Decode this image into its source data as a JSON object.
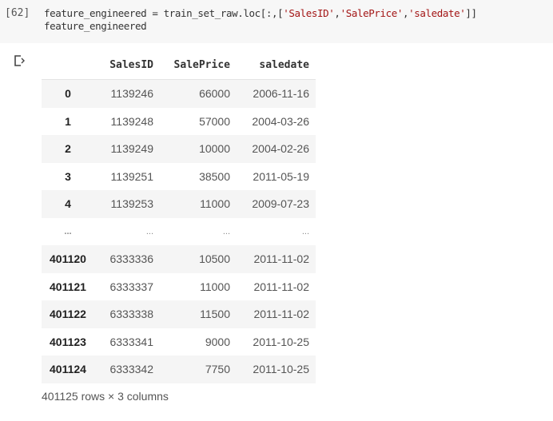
{
  "code_cell": {
    "execution_count": "[62]",
    "line1_prefix": "feature_engineered = train_set_raw.loc[:,[",
    "str1": "'SalesID'",
    "str2": "'SalePrice'",
    "str3": "'saledate'",
    "line1_suffix": "]]",
    "line2": "feature_engineered"
  },
  "output": {
    "icon": "output-arrow-icon",
    "columns": [
      "",
      "SalesID",
      "SalePrice",
      "saledate"
    ],
    "rows": [
      [
        "0",
        "1139246",
        "66000",
        "2006-11-16"
      ],
      [
        "1",
        "1139248",
        "57000",
        "2004-03-26"
      ],
      [
        "2",
        "1139249",
        "10000",
        "2004-02-26"
      ],
      [
        "3",
        "1139251",
        "38500",
        "2011-05-19"
      ],
      [
        "4",
        "1139253",
        "11000",
        "2009-07-23"
      ],
      [
        "...",
        "...",
        "...",
        "..."
      ],
      [
        "401120",
        "6333336",
        "10500",
        "2011-11-02"
      ],
      [
        "401121",
        "6333337",
        "11000",
        "2011-11-02"
      ],
      [
        "401122",
        "6333338",
        "11500",
        "2011-11-02"
      ],
      [
        "401123",
        "6333341",
        "9000",
        "2011-10-25"
      ],
      [
        "401124",
        "6333342",
        "7750",
        "2011-10-25"
      ]
    ],
    "footer": "401125 rows × 3 columns"
  }
}
